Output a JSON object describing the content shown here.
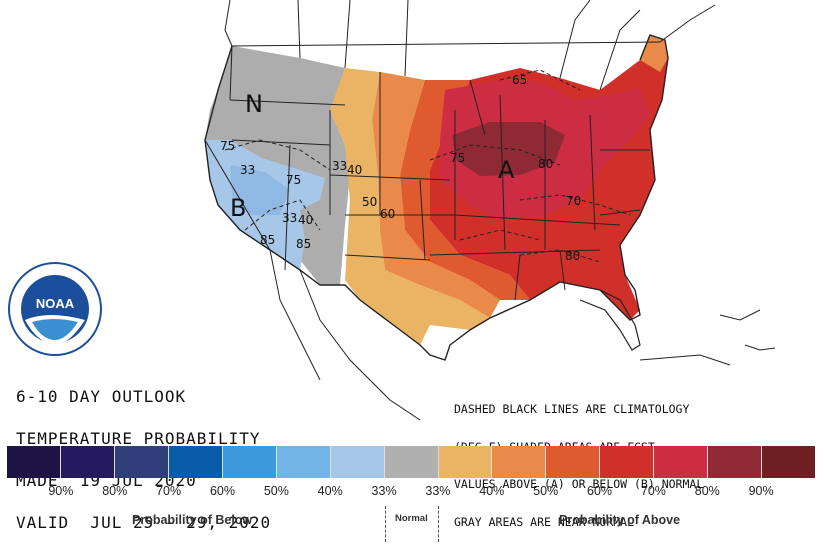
{
  "title_lines": [
    "6-10 DAY OUTLOOK",
    "TEMPERATURE PROBABILITY",
    "MADE  19 JUL 2020",
    "VALID  JUL 25 - 29, 2020"
  ],
  "notes_lines": [
    "DASHED BLACK LINES ARE CLIMATOLOGY",
    "(DEG F) SHADED AREAS ARE FCST",
    "VALUES ABOVE (A) OR BELOW (B) NORMAL",
    "GRAY AREAS ARE NEAR-NORMAL"
  ],
  "map_letters": {
    "near_normal": "N",
    "below": "B",
    "above": "A"
  },
  "contour_labels": [
    "75",
    "33",
    "75",
    "33",
    "40",
    "50",
    "60",
    "33",
    "40",
    "85",
    "85",
    "75",
    "80",
    "70",
    "80",
    "65"
  ],
  "logo_text": "NOAA",
  "legend": {
    "colors": [
      "#1f1545",
      "#261a5e",
      "#2e3f7a",
      "#0a5ca8",
      "#3b9bdc",
      "#72b4e6",
      "#a5c6e6",
      "#b0b0b0",
      "#eab464",
      "#ea8a4a",
      "#e05a30",
      "#d1302a",
      "#cd2d42",
      "#8f2a35",
      "#6e1f22"
    ],
    "ticks": [
      "90%",
      "80%",
      "70%",
      "60%",
      "50%",
      "40%",
      "33%",
      "33%",
      "40%",
      "50%",
      "60%",
      "70%",
      "80%",
      "90%"
    ],
    "below_label": "Probability of Below",
    "normal_label": "Normal",
    "above_label": "Probability of Above"
  },
  "map_colors": {
    "near_normal": "#adadad",
    "below_33": "#a6c7e7",
    "below_40": "#8fb9e3",
    "above_33": "#eab464",
    "above_40": "#ea8a4a",
    "above_50": "#e05a30",
    "above_60": "#d1302a",
    "above_70": "#cd2d42",
    "above_80": "#8f2a35",
    "land": "#ffffff",
    "line": "#222222"
  }
}
